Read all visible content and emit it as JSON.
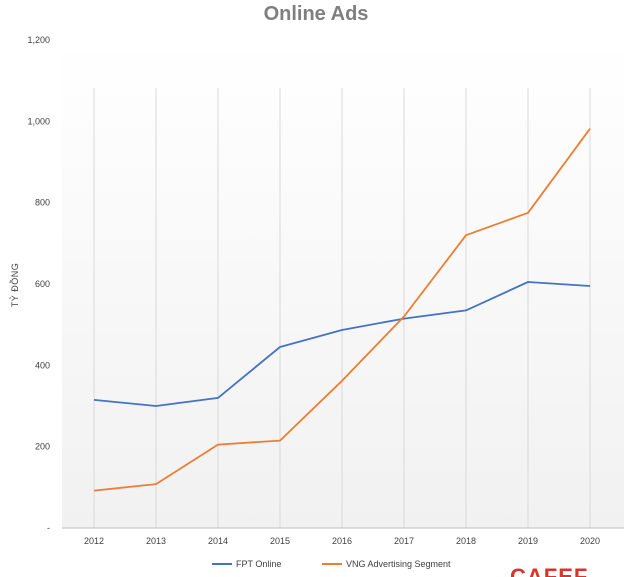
{
  "chart_data": {
    "type": "line",
    "title": "Online Ads",
    "ylabel": "TỶ ĐỒNG",
    "xlabel": "",
    "categories": [
      "2012",
      "2013",
      "2014",
      "2015",
      "2016",
      "2017",
      "2018",
      "2019",
      "2020"
    ],
    "y_ticks": [
      "-",
      "200",
      "400",
      "600",
      "800",
      "1,000",
      "1,200"
    ],
    "ylim": [
      0,
      1200
    ],
    "grid": "vertical lines at each category",
    "legend_position": "bottom",
    "series": [
      {
        "name": "FPT Online",
        "color": "#4472c4",
        "values": [
          315,
          300,
          320,
          445,
          487,
          515,
          535,
          605,
          595
        ]
      },
      {
        "name": "VNG Advertising Segment",
        "color": "#ed7d31",
        "values": [
          92,
          108,
          205,
          215,
          362,
          520,
          720,
          775,
          982
        ]
      }
    ]
  },
  "watermark": {
    "text": "CAFEF",
    "icon": "cafef-logo"
  }
}
